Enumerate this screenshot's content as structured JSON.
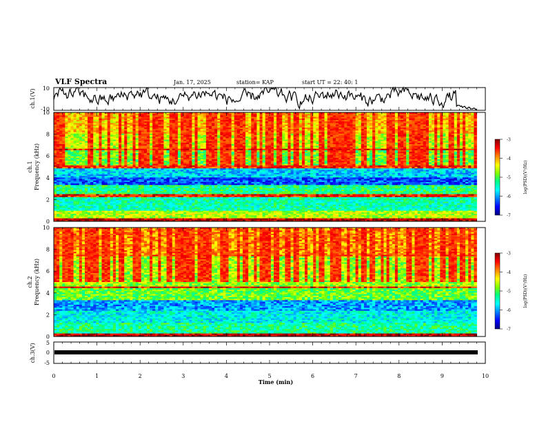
{
  "header": {
    "title": "VLF Spectra",
    "date": "Jan. 17, 2025",
    "station": "station= KAP",
    "start": "start  UT  =   22: 40: 1"
  },
  "chart_data": [
    {
      "type": "line",
      "panel": "ch1-waveform",
      "ylabel": "ch.1(V)",
      "ylim": [
        -10,
        10
      ],
      "yticks": [
        "10",
        "-10"
      ],
      "xlim": [
        0,
        10
      ],
      "data_extent_min": [
        0,
        9.8
      ],
      "note_values": "amplitude fluctuates roughly between -10 and 10 V, decreasing toward the end"
    },
    {
      "type": "heatmap",
      "panel": "ch1-spectrogram",
      "ylabel": "ch.1",
      "ylabel2": "Frequency (kHz)",
      "ylim": [
        0,
        10
      ],
      "yticks": [
        "0",
        "2",
        "4",
        "6",
        "8",
        "10"
      ],
      "xlim": [
        0,
        10
      ],
      "data_extent_min": [
        0,
        9.8
      ],
      "colorbar": {
        "label": "log(PSD)(V²/Hz)",
        "range": [
          -7,
          -3
        ],
        "ticks": [
          "-3",
          "-4",
          "-5",
          "-6",
          "-7"
        ]
      },
      "bands_khz": [
        {
          "lo": 0.0,
          "hi": 0.3,
          "level": -3.2
        },
        {
          "lo": 0.3,
          "hi": 1.0,
          "level": -4.6
        },
        {
          "lo": 1.0,
          "hi": 2.2,
          "level": -5.4
        },
        {
          "lo": 2.2,
          "hi": 2.5,
          "level": -3.5
        },
        {
          "lo": 2.5,
          "hi": 3.3,
          "level": -5.2
        },
        {
          "lo": 3.3,
          "hi": 4.0,
          "level": -6.3
        },
        {
          "lo": 4.0,
          "hi": 4.9,
          "level": -5.8
        },
        {
          "lo": 4.9,
          "hi": 5.2,
          "level": -3.6
        },
        {
          "lo": 5.2,
          "hi": 6.5,
          "level": -4.9
        },
        {
          "lo": 6.5,
          "hi": 6.7,
          "level": -3.5
        },
        {
          "lo": 6.7,
          "hi": 8.0,
          "level": -4.6
        },
        {
          "lo": 8.0,
          "hi": 10.0,
          "level": -4.2
        }
      ]
    },
    {
      "type": "heatmap",
      "panel": "ch2-spectrogram",
      "ylabel": "ch.2",
      "ylabel2": "Frequency (kHz)",
      "ylim": [
        0,
        10
      ],
      "yticks": [
        "0",
        "2",
        "4",
        "6",
        "8",
        "10"
      ],
      "xlim": [
        0,
        10
      ],
      "data_extent_min": [
        0,
        9.8
      ],
      "colorbar": {
        "label": "log(PSD)(V²/Hz)",
        "range": [
          -7,
          -3
        ],
        "ticks": [
          "-3",
          "-4",
          "-5",
          "-6",
          "-7"
        ]
      },
      "bands_khz": [
        {
          "lo": 0.0,
          "hi": 0.3,
          "level": -3.2
        },
        {
          "lo": 0.3,
          "hi": 1.2,
          "level": -5.3
        },
        {
          "lo": 1.2,
          "hi": 2.3,
          "level": -5.6
        },
        {
          "lo": 2.3,
          "hi": 3.4,
          "level": -6.0
        },
        {
          "lo": 3.4,
          "hi": 4.4,
          "level": -4.9
        },
        {
          "lo": 4.4,
          "hi": 4.6,
          "level": -3.5
        },
        {
          "lo": 4.6,
          "hi": 7.3,
          "level": -4.7
        },
        {
          "lo": 7.3,
          "hi": 7.5,
          "level": -3.8
        },
        {
          "lo": 7.5,
          "hi": 10.0,
          "level": -4.0
        }
      ]
    },
    {
      "type": "line",
      "panel": "ch3-waveform",
      "ylabel": "ch.3(V)",
      "ylim": [
        -5,
        5
      ],
      "yticks": [
        "5",
        "0",
        "-5"
      ],
      "xlim": [
        0,
        10
      ],
      "xticks": [
        "0",
        "1",
        "2",
        "3",
        "4",
        "5",
        "6",
        "7",
        "8",
        "9",
        "10"
      ],
      "xlabel": "Time  (min)",
      "data_extent_min": [
        0,
        9.8
      ],
      "note_values": "thick flat band near -0.5 to 0.5 V"
    }
  ],
  "colors": {
    "colormap": [
      "#00007f",
      "#0000ff",
      "#0080ff",
      "#00ffff",
      "#00ff80",
      "#80ff00",
      "#ffff00",
      "#ff8000",
      "#ff0000",
      "#800000"
    ]
  }
}
